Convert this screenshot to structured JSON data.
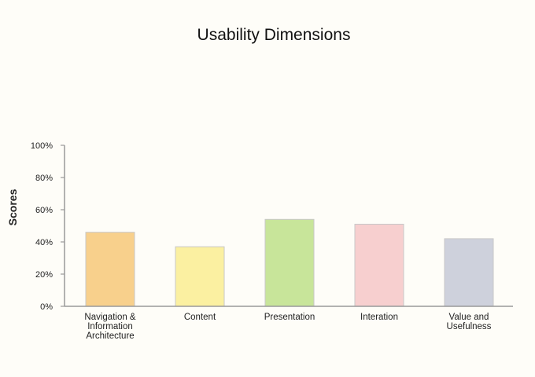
{
  "chart_data": {
    "type": "bar",
    "title": "Usability Dimensions",
    "xlabel": "",
    "ylabel": "Scores",
    "ylim": [
      0,
      100
    ],
    "yticks": [
      "0%",
      "20%",
      "40%",
      "60%",
      "80%",
      "100%"
    ],
    "categories": [
      [
        "Navigation &",
        "Information",
        "Architecture"
      ],
      [
        "Content"
      ],
      [
        "Presentation"
      ],
      [
        "Interation"
      ],
      [
        "Value and",
        "Usefulness"
      ]
    ],
    "values": [
      46,
      37,
      54,
      51,
      42
    ],
    "colors": [
      "#f8d08c",
      "#fbf0a1",
      "#c8e59a",
      "#f7cfcf",
      "#ced1dc"
    ],
    "grid": false,
    "legend": "none"
  }
}
